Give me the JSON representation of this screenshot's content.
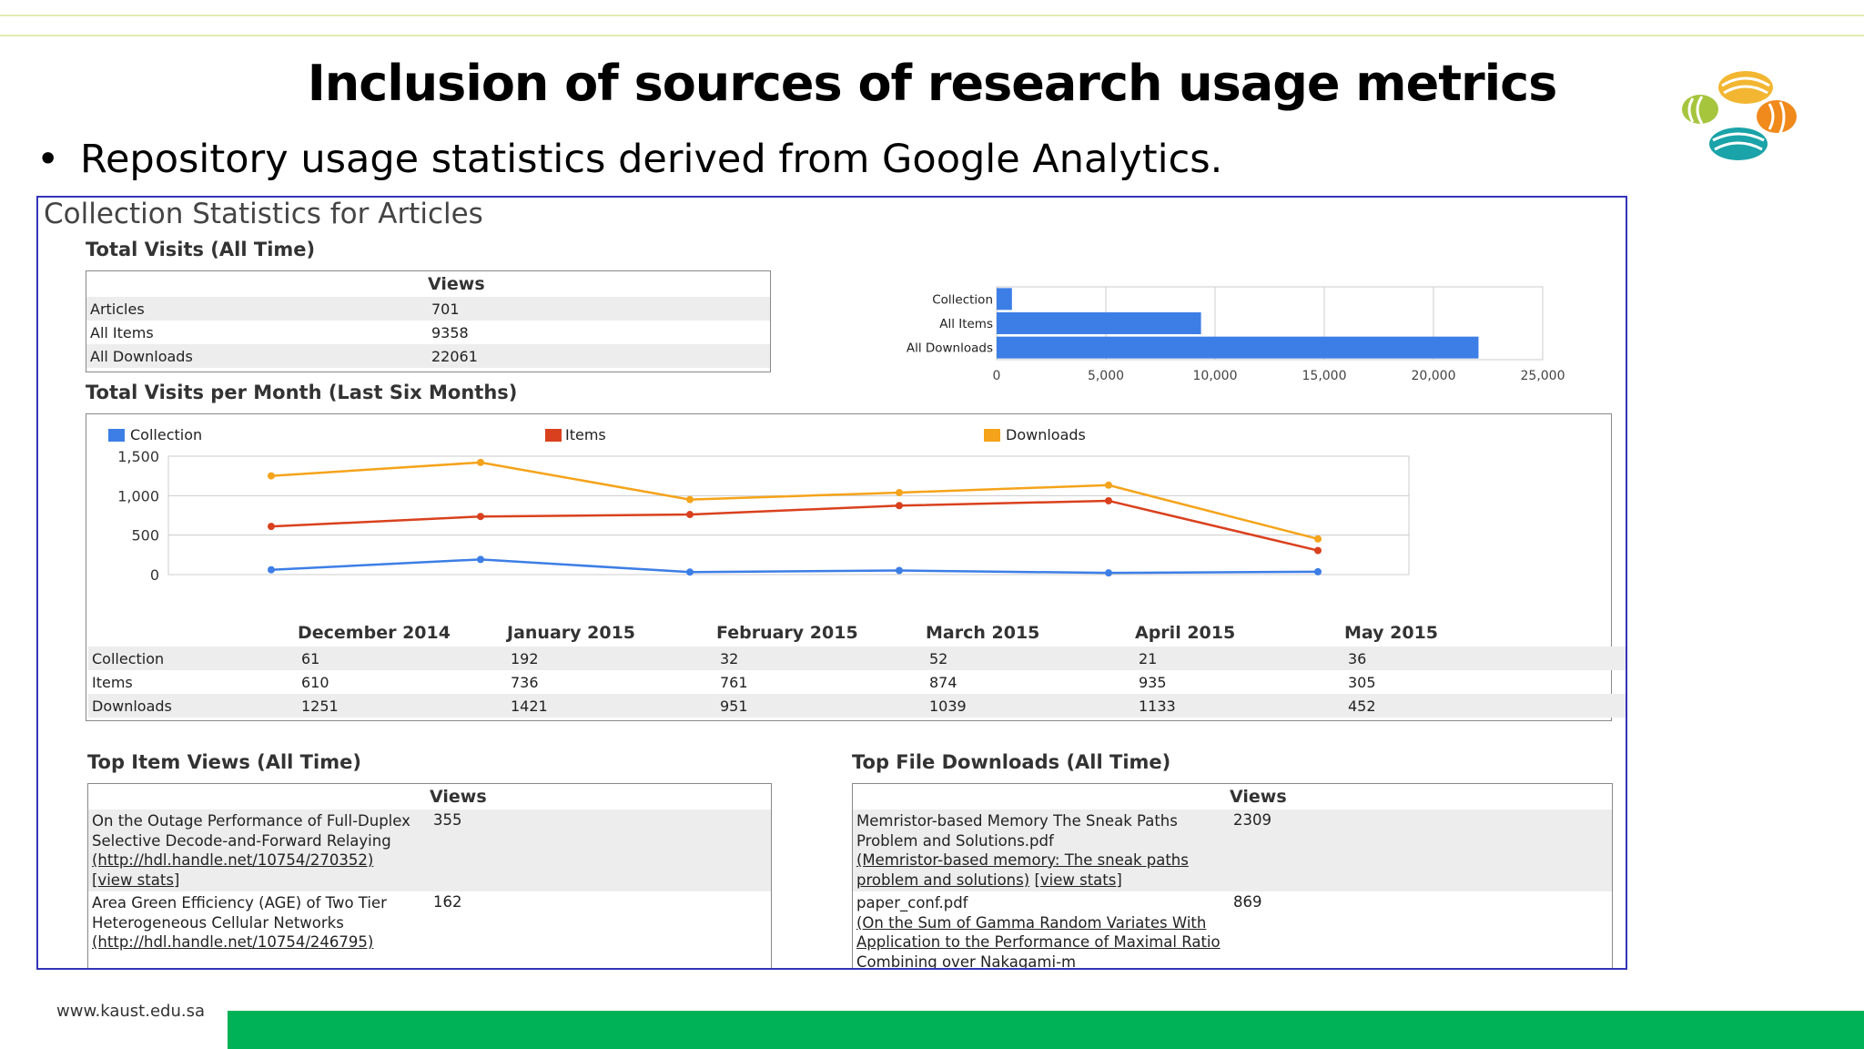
{
  "slide": {
    "title": "Inclusion of sources of research usage metrics",
    "bullet": "Repository usage statistics derived from Google Analytics.",
    "footer_url": "www.kaust.edu.sa",
    "colors": {
      "footer_bar": "#00b257",
      "frame": "#3434b8",
      "header_line": "#e4ecb4"
    }
  },
  "stats": {
    "title": "Collection Statistics for Articles",
    "total_visits": {
      "heading": "Total Visits (All Time)",
      "col_header": "Views",
      "rows": [
        {
          "label": "Articles",
          "value": "701"
        },
        {
          "label": "All Items",
          "value": "9358"
        },
        {
          "label": "All Downloads",
          "value": "22061"
        }
      ]
    },
    "per_month": {
      "heading": "Total Visits per Month (Last Six Months)",
      "months": [
        "December 2014",
        "January 2015",
        "February 2015",
        "March 2015",
        "April 2015",
        "May 2015"
      ],
      "rows": [
        {
          "label": "Collection",
          "values": [
            "61",
            "192",
            "32",
            "52",
            "21",
            "36"
          ]
        },
        {
          "label": "Items",
          "values": [
            "610",
            "736",
            "761",
            "874",
            "935",
            "305"
          ]
        },
        {
          "label": "Downloads",
          "values": [
            "1251",
            "1421",
            "951",
            "1039",
            "1133",
            "452"
          ]
        }
      ]
    },
    "top_items": {
      "heading": "Top Item Views (All Time)",
      "col_header": "Views",
      "rows": [
        {
          "text": "On the Outage Performance of Full-Duplex Selective Decode-and-Forward Relaying",
          "link": "(http://hdl.handle.net/10754/270352)",
          "stats": "[view stats]",
          "value": "355"
        },
        {
          "text": "Area Green Efficiency (AGE) of Two Tier Heterogeneous Cellular Networks",
          "link": "(http://hdl.handle.net/10754/246795)",
          "stats": "",
          "value": "162"
        }
      ]
    },
    "top_downloads": {
      "heading": "Top File Downloads (All Time)",
      "col_header": "Views",
      "rows": [
        {
          "text": "Memristor-based Memory The Sneak Paths Problem and Solutions.pdf",
          "link": "(Memristor-based memory: The sneak paths problem and solutions)",
          "stats": "[view stats]",
          "value": "2309"
        },
        {
          "text": "paper_conf.pdf",
          "link": "(On the Sum of Gamma Random Variates With Application to the Performance of Maximal Ratio Combining over Nakagami-m",
          "stats": "",
          "value": "869"
        }
      ]
    }
  },
  "chart_data": [
    {
      "type": "bar",
      "orientation": "horizontal",
      "title": "",
      "categories": [
        "Collection",
        "All Items",
        "All Downloads"
      ],
      "values": [
        701,
        9358,
        22061
      ],
      "xlim": [
        0,
        25000
      ],
      "xticks": [
        "0",
        "5,000",
        "10,000",
        "15,000",
        "20,000",
        "25,000"
      ],
      "grid": true,
      "color": "#3d7ee6"
    },
    {
      "type": "line",
      "title": "",
      "categories": [
        "December 2014",
        "January 2015",
        "February 2015",
        "March 2015",
        "April 2015",
        "May 2015"
      ],
      "ylim": [
        0,
        1500
      ],
      "yticks": [
        "0",
        "500",
        "1,000",
        "1,500"
      ],
      "grid": true,
      "legend_position": "top",
      "series": [
        {
          "name": "Collection",
          "color": "#3d7ee6",
          "values": [
            61,
            192,
            32,
            52,
            21,
            36
          ]
        },
        {
          "name": "Items",
          "color": "#d9411e",
          "values": [
            610,
            736,
            761,
            874,
            935,
            305
          ]
        },
        {
          "name": "Downloads",
          "color": "#f5a31a",
          "values": [
            1251,
            1421,
            951,
            1039,
            1133,
            452
          ]
        }
      ]
    }
  ]
}
